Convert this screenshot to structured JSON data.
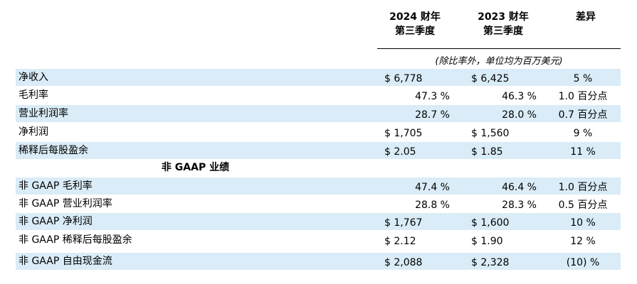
{
  "header": {
    "col1_line1": "2024 财年",
    "col1_line2": "第三季度",
    "col2_line1": "2023 财年",
    "col2_line2": "第三季度",
    "col3": "差异",
    "unit_note": "(除比率外，单位均为百万美元)"
  },
  "gaap_rows": [
    {
      "label": "净收入",
      "fy24": "$ 6,778",
      "fy23": "$ 6,425",
      "diff": "5 %"
    },
    {
      "label": "毛利率",
      "fy24": "47.3 %",
      "fy23": "46.3 %",
      "diff": "1.0 百分点"
    },
    {
      "label": "营业利润率",
      "fy24": "28.7 %",
      "fy23": "28.0 %",
      "diff": "0.7 百分点"
    },
    {
      "label": "净利润",
      "fy24": "$ 1,705",
      "fy23": "$ 1,560",
      "diff": "9 %"
    },
    {
      "label": "稀释后每股盈余",
      "fy24": "$ 2.05",
      "fy23": "$ 1.85",
      "diff": "11 %"
    }
  ],
  "non_gaap_title": "非 GAAP 业绩",
  "non_gaap_rows": [
    {
      "label": "非 GAAP 毛利率",
      "fy24": "47.4 %",
      "fy23": "46.4 %",
      "diff": "1.0 百分点"
    },
    {
      "label": "非 GAAP 营业利润率",
      "fy24": "28.8 %",
      "fy23": "28.3 %",
      "diff": "0.5 百分点"
    },
    {
      "label": "非 GAAP 净利润",
      "fy24": "$ 1,767",
      "fy23": "$ 1,600",
      "diff": "10 %"
    },
    {
      "label": "非 GAAP 稀释后每股盈余",
      "fy24": "$ 2.12",
      "fy23": "$ 1.90",
      "diff": "12 %"
    },
    {
      "label": "非 GAAP 自由现金流",
      "fy24": "$ 2,088",
      "fy23": "$ 2,328",
      "diff": "(10) %"
    }
  ]
}
